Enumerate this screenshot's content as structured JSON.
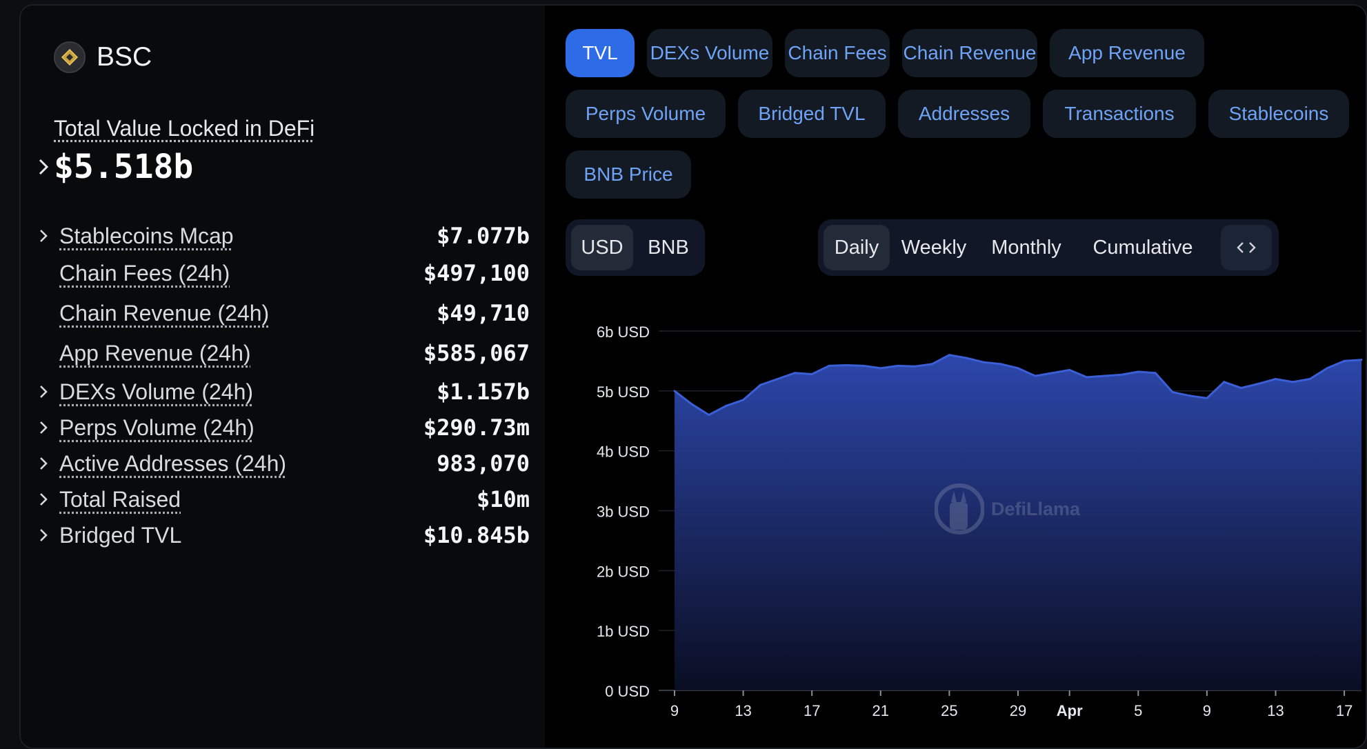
{
  "chain": {
    "name": "BSC",
    "logo_icon": "bnb-logo-icon"
  },
  "tvl": {
    "label": "Total Value Locked in DeFi",
    "value": "$5.518b"
  },
  "metrics": [
    {
      "label": "Stablecoins Mcap",
      "value": "$7.077b",
      "expandable": true,
      "underlined": true
    },
    {
      "label": "Chain Fees (24h)",
      "value": "$497,100",
      "expandable": false,
      "underlined": true
    },
    {
      "label": "Chain Revenue (24h)",
      "value": "$49,710",
      "expandable": false,
      "underlined": true
    },
    {
      "label": "App Revenue (24h)",
      "value": "$585,067",
      "expandable": false,
      "underlined": true
    },
    {
      "label": "DEXs Volume (24h)",
      "value": "$1.157b",
      "expandable": true,
      "underlined": true
    },
    {
      "label": "Perps Volume (24h)",
      "value": "$290.73m",
      "expandable": true,
      "underlined": true
    },
    {
      "label": "Active Addresses (24h)",
      "value": "983,070",
      "expandable": true,
      "underlined": true
    },
    {
      "label": "Total Raised",
      "value": "$10m",
      "expandable": true,
      "underlined": true
    },
    {
      "label": "Bridged TVL",
      "value": "$10.845b",
      "expandable": true,
      "underlined": false
    }
  ],
  "tabs": [
    {
      "label": "TVL",
      "active": true
    },
    {
      "label": "DEXs Volume",
      "active": false
    },
    {
      "label": "Chain Fees",
      "active": false
    },
    {
      "label": "Chain Revenue",
      "active": false
    },
    {
      "label": "App Revenue",
      "active": false
    },
    {
      "label": "Perps Volume",
      "active": false
    },
    {
      "label": "Bridged TVL",
      "active": false
    },
    {
      "label": "Addresses",
      "active": false
    },
    {
      "label": "Transactions",
      "active": false
    },
    {
      "label": "Stablecoins",
      "active": false
    },
    {
      "label": "BNB Price",
      "active": false
    }
  ],
  "currency_toggle": {
    "options": [
      "USD",
      "BNB"
    ],
    "selected": "USD"
  },
  "period_toggle": {
    "options": [
      "Daily",
      "Weekly",
      "Monthly",
      "Cumulative"
    ],
    "selected": "Daily",
    "embed_icon": "code-embed-icon"
  },
  "watermark": {
    "text": "DefiLlama"
  },
  "colors": {
    "accent": "#2e6be6",
    "tab_text": "#6fa3f5",
    "line": "#3b5fd6"
  },
  "chart_data": {
    "type": "area",
    "ylabel": "",
    "yticks": [
      "0 USD",
      "1b USD",
      "2b USD",
      "3b USD",
      "4b USD",
      "5b USD",
      "6b USD"
    ],
    "ylim": [
      0,
      6
    ],
    "xticks": [
      {
        "label": "9",
        "day": 0
      },
      {
        "label": "13",
        "day": 4
      },
      {
        "label": "17",
        "day": 8
      },
      {
        "label": "21",
        "day": 12
      },
      {
        "label": "25",
        "day": 16
      },
      {
        "label": "29",
        "day": 20
      },
      {
        "label": "Apr",
        "day": 23,
        "bold": true
      },
      {
        "label": "5",
        "day": 27
      },
      {
        "label": "9",
        "day": 31
      },
      {
        "label": "13",
        "day": 35
      },
      {
        "label": "17",
        "day": 39
      }
    ],
    "grid": true,
    "series": [
      {
        "values": [
          5.0,
          4.78,
          4.6,
          4.75,
          4.85,
          5.1,
          5.2,
          5.3,
          5.28,
          5.42,
          5.43,
          5.42,
          5.38,
          5.42,
          5.41,
          5.45,
          5.6,
          5.55,
          5.48,
          5.45,
          5.38,
          5.25,
          5.3,
          5.35,
          5.23,
          5.25,
          5.27,
          5.32,
          5.3,
          4.98,
          4.92,
          4.88,
          5.15,
          5.05,
          5.12,
          5.2,
          5.15,
          5.2,
          5.38,
          5.5,
          5.52
        ]
      }
    ]
  }
}
